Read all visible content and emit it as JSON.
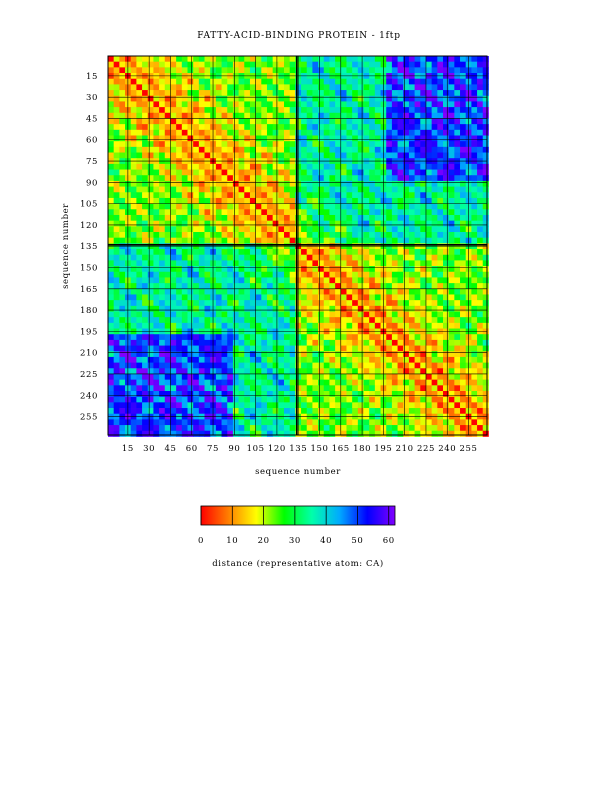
{
  "chart_data": {
    "type": "heatmap",
    "title": "FATTY-ACID-BINDING PROTEIN  - 1ftp",
    "xlabel": "sequence number",
    "ylabel": "sequence number",
    "x_ticks": [
      15,
      30,
      45,
      60,
      75,
      90,
      105,
      120,
      135,
      150,
      165,
      180,
      195,
      210,
      225,
      240,
      255
    ],
    "y_ticks": [
      15,
      30,
      45,
      60,
      75,
      90,
      105,
      120,
      135,
      150,
      165,
      180,
      195,
      210,
      225,
      240,
      255
    ],
    "xlim": [
      1,
      268
    ],
    "ylim": [
      1,
      268
    ],
    "y_inverted": true,
    "domain_boundary": 134,
    "grid": true,
    "colorbar": {
      "label": "distance (representative atom: CA)",
      "ticks": [
        0,
        10,
        20,
        30,
        40,
        50,
        60
      ],
      "range": [
        0,
        62
      ],
      "colors": [
        "#ff0000",
        "#ff8000",
        "#ffff00",
        "#00ff00",
        "#00ffaa",
        "#00aaff",
        "#0000ff",
        "#8000ff"
      ]
    }
  }
}
